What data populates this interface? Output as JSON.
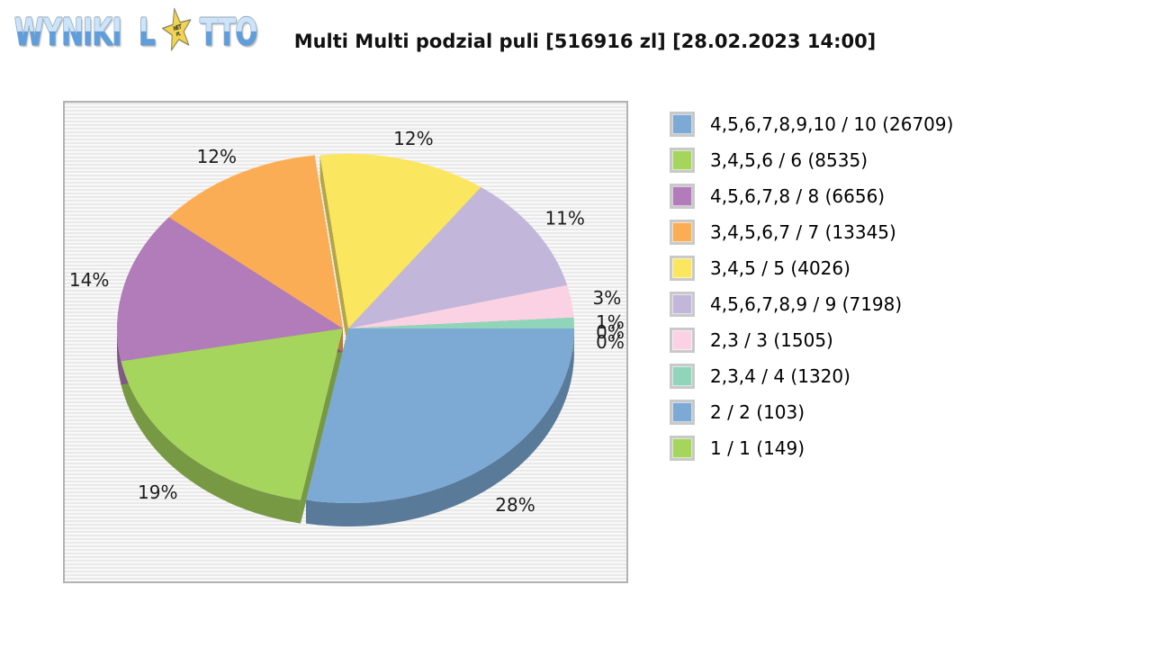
{
  "logo": {
    "word1": "WYNIKI",
    "word2": "L",
    "word3": "TTO",
    "star_text_top": "NET",
    "star_text_bottom": "PL"
  },
  "header": {
    "title": "Multi Multi podzial puli [516916 zl] [28.02.2023 14:00]"
  },
  "chart_data": {
    "type": "pie",
    "title": "Multi Multi podzial puli [516916 zl] [28.02.2023 14:00]",
    "effect": "3d-exploded",
    "legend_position": "right",
    "labels": "percent-outside",
    "slices": [
      {
        "label": "4,5,6,7,8,9,10 / 10",
        "count": 26709,
        "percent": 28,
        "color": "#7CAAD4"
      },
      {
        "label": "3,4,5,6 / 6",
        "count": 8535,
        "percent": 19,
        "color": "#A6D55E"
      },
      {
        "label": "4,5,6,7,8 / 8",
        "count": 6656,
        "percent": 14,
        "color": "#B17CB9"
      },
      {
        "label": "3,4,5,6,7 / 7",
        "count": 13345,
        "percent": 12,
        "color": "#FBAD55"
      },
      {
        "label": "3,4,5 / 5",
        "count": 4026,
        "percent": 12,
        "color": "#FBE65F"
      },
      {
        "label": "4,5,6,7,8,9 / 9",
        "count": 7198,
        "percent": 11,
        "color": "#C2B6DA"
      },
      {
        "label": "2,3 / 3",
        "count": 1505,
        "percent": 3,
        "color": "#FAD2E4"
      },
      {
        "label": "2,3,4 / 4",
        "count": 1320,
        "percent": 1,
        "color": "#90D5B9"
      },
      {
        "label": "2 / 2",
        "count": 103,
        "percent": 0,
        "color": "#7CAAD4"
      },
      {
        "label": "1 / 1",
        "count": 149,
        "percent": 0,
        "color": "#A6D55E"
      }
    ]
  }
}
